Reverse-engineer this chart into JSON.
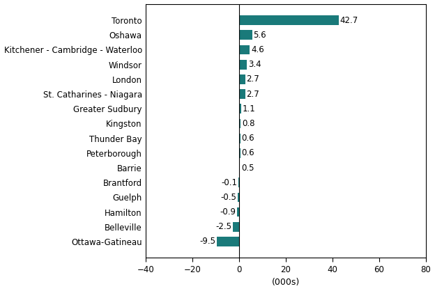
{
  "categories": [
    "Ottawa-Gatineau",
    "Belleville",
    "Hamilton",
    "Guelph",
    "Brantford",
    "Barrie",
    "Peterborough",
    "Thunder Bay",
    "Kingston",
    "Greater Sudbury",
    "St. Catharines - Niagara",
    "London",
    "Windsor",
    "Kitchener - Cambridge - Waterloo",
    "Oshawa",
    "Toronto"
  ],
  "values": [
    -9.5,
    -2.5,
    -0.9,
    -0.5,
    -0.1,
    0.5,
    0.6,
    0.6,
    0.8,
    1.1,
    2.7,
    2.7,
    3.4,
    4.6,
    5.6,
    42.7
  ],
  "bar_color": "#1a7a7a",
  "xlabel": "(000s)",
  "xlim": [
    -40,
    80
  ],
  "xticks": [
    -40,
    -20,
    0,
    20,
    40,
    60,
    80
  ],
  "label_fontsize": 8.5,
  "tick_fontsize": 8.5,
  "xlabel_fontsize": 9,
  "bar_height": 0.65,
  "figure_width": 6.24,
  "figure_height": 4.18,
  "dpi": 100
}
